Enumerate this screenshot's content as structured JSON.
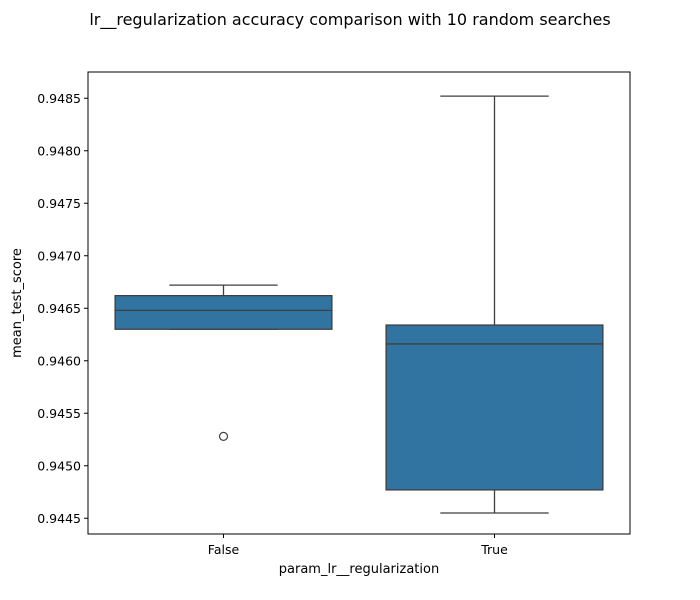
{
  "chart_data": {
    "type": "box",
    "title": "lr__regularization accuracy comparison with 10 random searches",
    "xlabel": "param_lr__regularization",
    "ylabel": "mean_test_score",
    "ylim": [
      0.94435,
      0.94875
    ],
    "yticks": [
      0.9445,
      0.945,
      0.9455,
      0.946,
      0.9465,
      0.947,
      0.9475,
      0.948,
      0.9485
    ],
    "ytick_labels": [
      "0.9445",
      "0.9450",
      "0.9455",
      "0.9460",
      "0.9465",
      "0.9470",
      "0.9475",
      "0.9480",
      "0.9485"
    ],
    "grid": false,
    "legend": "none",
    "box_color": "#3274a1",
    "line_color": "#3f3f3f",
    "categories": [
      "False",
      "True"
    ],
    "boxes": [
      {
        "category": "False",
        "whisker_low": 0.9463,
        "q1": 0.9463,
        "median": 0.94648,
        "q3": 0.94662,
        "whisker_high": 0.94672,
        "outliers": [
          0.94528
        ]
      },
      {
        "category": "True",
        "whisker_low": 0.94455,
        "q1": 0.94477,
        "median": 0.94616,
        "q3": 0.94634,
        "whisker_high": 0.94852,
        "outliers": []
      }
    ]
  }
}
